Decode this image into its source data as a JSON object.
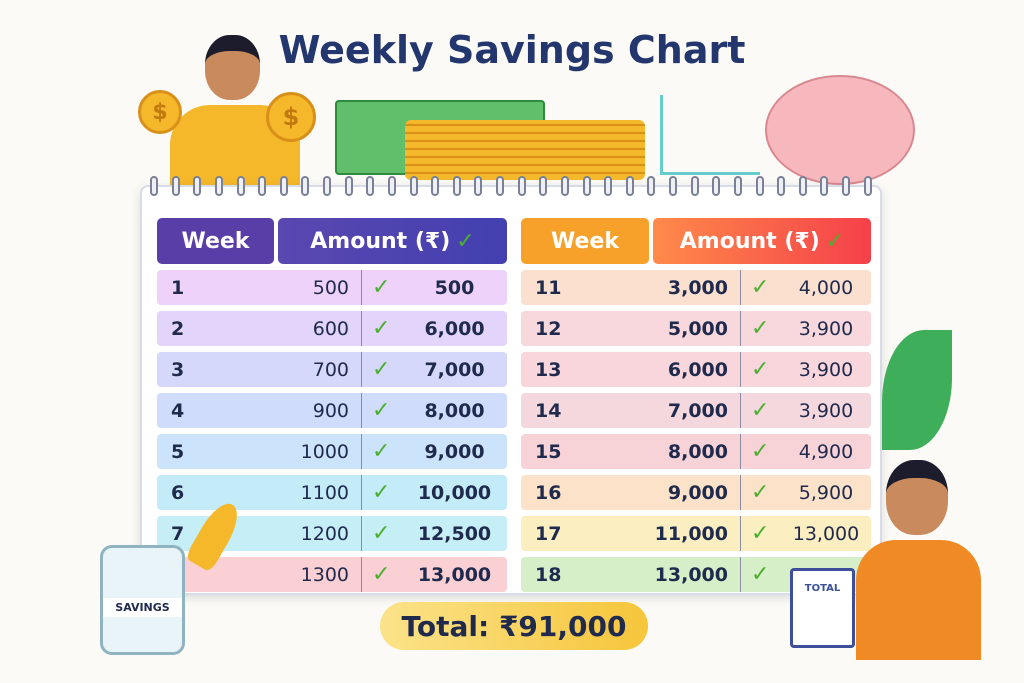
{
  "title": "Weekly Savings Chart",
  "left_table": {
    "headers": [
      "Week",
      "Amount (₹)"
    ],
    "rows": [
      {
        "week": "1",
        "amount": "500",
        "cumulative": "500"
      },
      {
        "week": "2",
        "amount": "600",
        "cumulative": "6,000"
      },
      {
        "week": "3",
        "amount": "700",
        "cumulative": "7,000"
      },
      {
        "week": "4",
        "amount": "900",
        "cumulative": "8,000"
      },
      {
        "week": "5",
        "amount": "1000",
        "cumulative": "9,000"
      },
      {
        "week": "6",
        "amount": "1100",
        "cumulative": "10,000"
      },
      {
        "week": "7",
        "amount": "1200",
        "cumulative": "12,500"
      },
      {
        "week": "",
        "amount": "1300",
        "cumulative": "13,000"
      }
    ]
  },
  "right_table": {
    "headers": [
      "Week",
      "Amount (₹)"
    ],
    "rows": [
      {
        "week": "11",
        "amount": "3,000",
        "cumulative": "4,000"
      },
      {
        "week": "12",
        "amount": "5,000",
        "cumulative": "3,900"
      },
      {
        "week": "13",
        "amount": "6,000",
        "cumulative": "3,900"
      },
      {
        "week": "14",
        "amount": "7,000",
        "cumulative": "3,900"
      },
      {
        "week": "15",
        "amount": "8,000",
        "cumulative": "4,900"
      },
      {
        "week": "16",
        "amount": "9,000",
        "cumulative": "5,900"
      },
      {
        "week": "17",
        "amount": "11,000",
        "cumulative": "13,000"
      },
      {
        "week": "18",
        "amount": "13,000",
        "cumulative": ""
      }
    ]
  },
  "check": "✓",
  "total": "Total: ₹91,000",
  "jar_label": "SAVINGS",
  "clipboard_label": "TOTAL",
  "coin_symbol": "$",
  "colors": {
    "title": "#24366e",
    "left_header": "#5a3ea8",
    "right_header": "#f7a02a",
    "check": "#4caf30"
  }
}
